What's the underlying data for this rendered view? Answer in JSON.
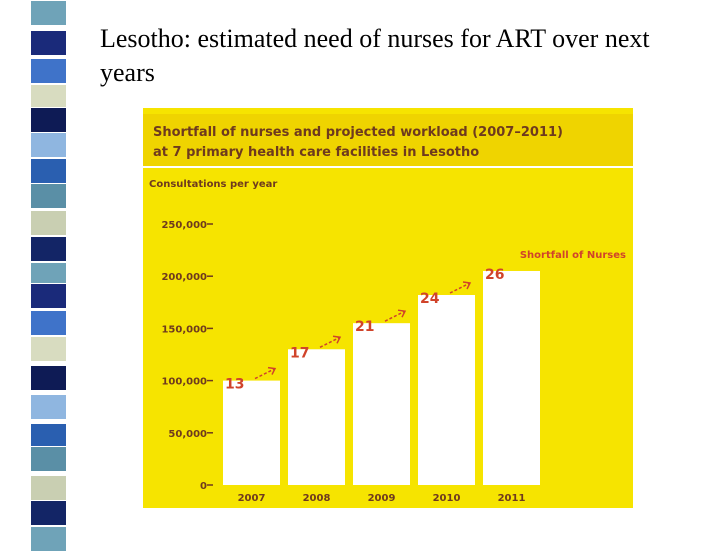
{
  "slide": {
    "title": "Lesotho: estimated need of nurses for ART over next years"
  },
  "colors": {
    "panel": "#f6e400",
    "header": "#efd400",
    "text_brown": "#6e3a1e",
    "bar_label": "#d0432a",
    "bar_fill": "#ffffff"
  },
  "chart_data": {
    "type": "bar",
    "title_line1": "Shortfall of nurses and projected workload (2007–2011)",
    "title_line2": "at 7 primary health care facilities in Lesotho",
    "ylabel": "Consultations per year",
    "ylim": [
      0,
      250000
    ],
    "yticks": [
      0,
      50000,
      100000,
      150000,
      200000,
      250000
    ],
    "ytick_labels": [
      "0",
      "50,000",
      "100,000",
      "150,000",
      "200,000",
      "250,000"
    ],
    "categories": [
      "2007",
      "2008",
      "2009",
      "2010",
      "2011"
    ],
    "values": [
      100000,
      130000,
      155000,
      182000,
      205000
    ],
    "data_labels": [
      "13",
      "17",
      "21",
      "24",
      "26"
    ],
    "annotation": "Shortfall of Nurses",
    "grid": false
  }
}
